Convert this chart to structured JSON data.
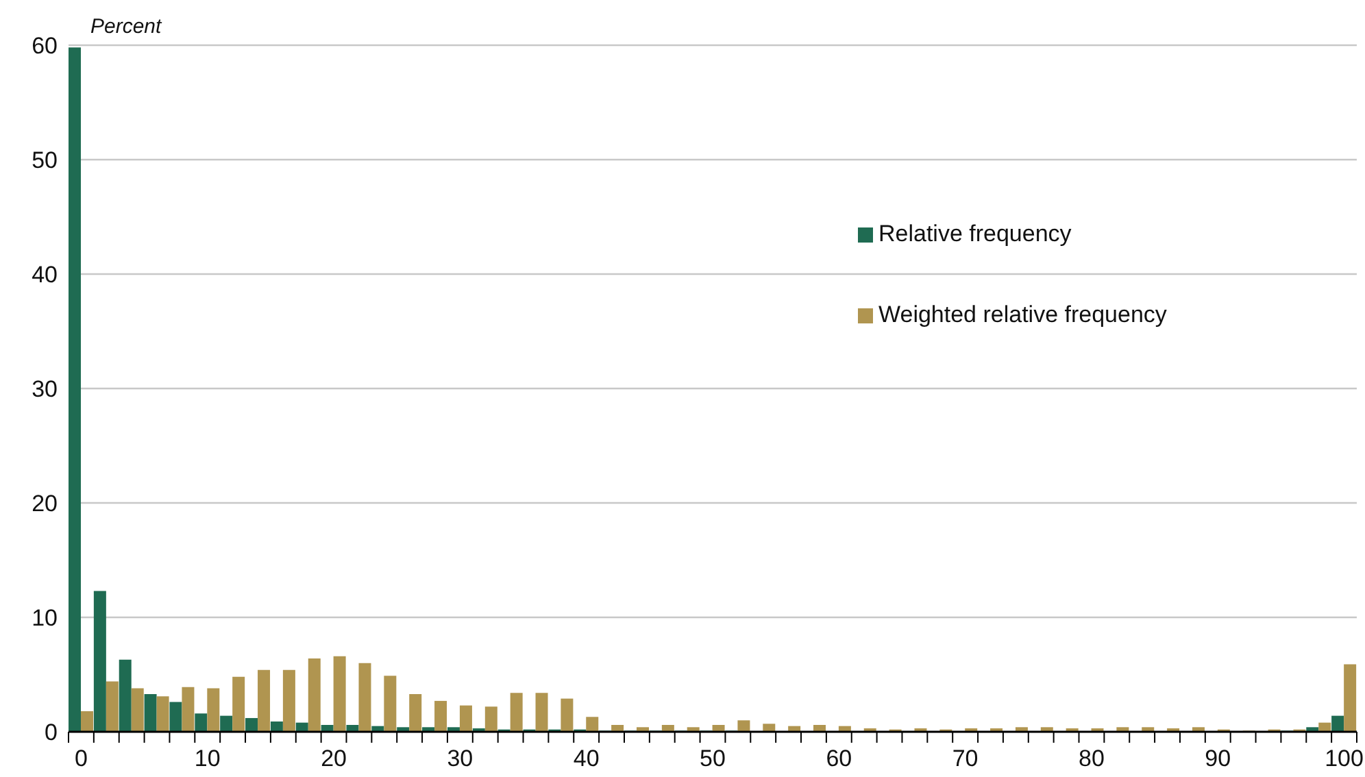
{
  "chart_data": {
    "type": "bar",
    "ylabel": "Percent",
    "categories": [
      "0",
      null,
      null,
      null,
      null,
      "10",
      null,
      null,
      null,
      null,
      "20",
      null,
      null,
      null,
      null,
      "30",
      null,
      null,
      null,
      null,
      "40",
      null,
      null,
      null,
      null,
      "50",
      null,
      null,
      null,
      null,
      "60",
      null,
      null,
      null,
      null,
      "70",
      null,
      null,
      null,
      null,
      "80",
      null,
      null,
      null,
      null,
      "90",
      null,
      null,
      null,
      null,
      "100"
    ],
    "series": [
      {
        "name": "Relative frequency",
        "color": "#1f6b52",
        "values": [
          59.8,
          12.3,
          6.3,
          3.3,
          2.6,
          1.6,
          1.4,
          1.2,
          0.9,
          0.8,
          0.6,
          0.6,
          0.5,
          0.4,
          0.4,
          0.4,
          0.3,
          0.2,
          0.2,
          0.2,
          0.2,
          0.1,
          0.1,
          0.1,
          0.1,
          0.1,
          0.1,
          0,
          0,
          0,
          0,
          0,
          0,
          0,
          0,
          0,
          0,
          0,
          0,
          0,
          0,
          0,
          0,
          0,
          0,
          0,
          0,
          0,
          0.1,
          0.4,
          1.4
        ]
      },
      {
        "name": "Weighted relative frequency",
        "color": "#b09550",
        "values": [
          1.8,
          4.4,
          3.8,
          3.1,
          3.9,
          3.8,
          4.8,
          5.4,
          5.4,
          6.4,
          6.6,
          6.0,
          4.9,
          3.3,
          2.7,
          2.3,
          2.2,
          3.4,
          3.4,
          2.9,
          1.3,
          0.6,
          0.4,
          0.6,
          0.4,
          0.6,
          1.0,
          0.7,
          0.5,
          0.6,
          0.5,
          0.3,
          0.2,
          0.3,
          0.2,
          0.3,
          0.3,
          0.4,
          0.4,
          0.3,
          0.3,
          0.4,
          0.4,
          0.3,
          0.4,
          0.2,
          0.1,
          0.2,
          0.2,
          0.8,
          5.9
        ]
      }
    ],
    "ylim": [
      0,
      60
    ],
    "yticks": [
      0,
      10,
      20,
      30,
      40,
      50,
      60
    ],
    "grid": "y",
    "legend": "right"
  }
}
